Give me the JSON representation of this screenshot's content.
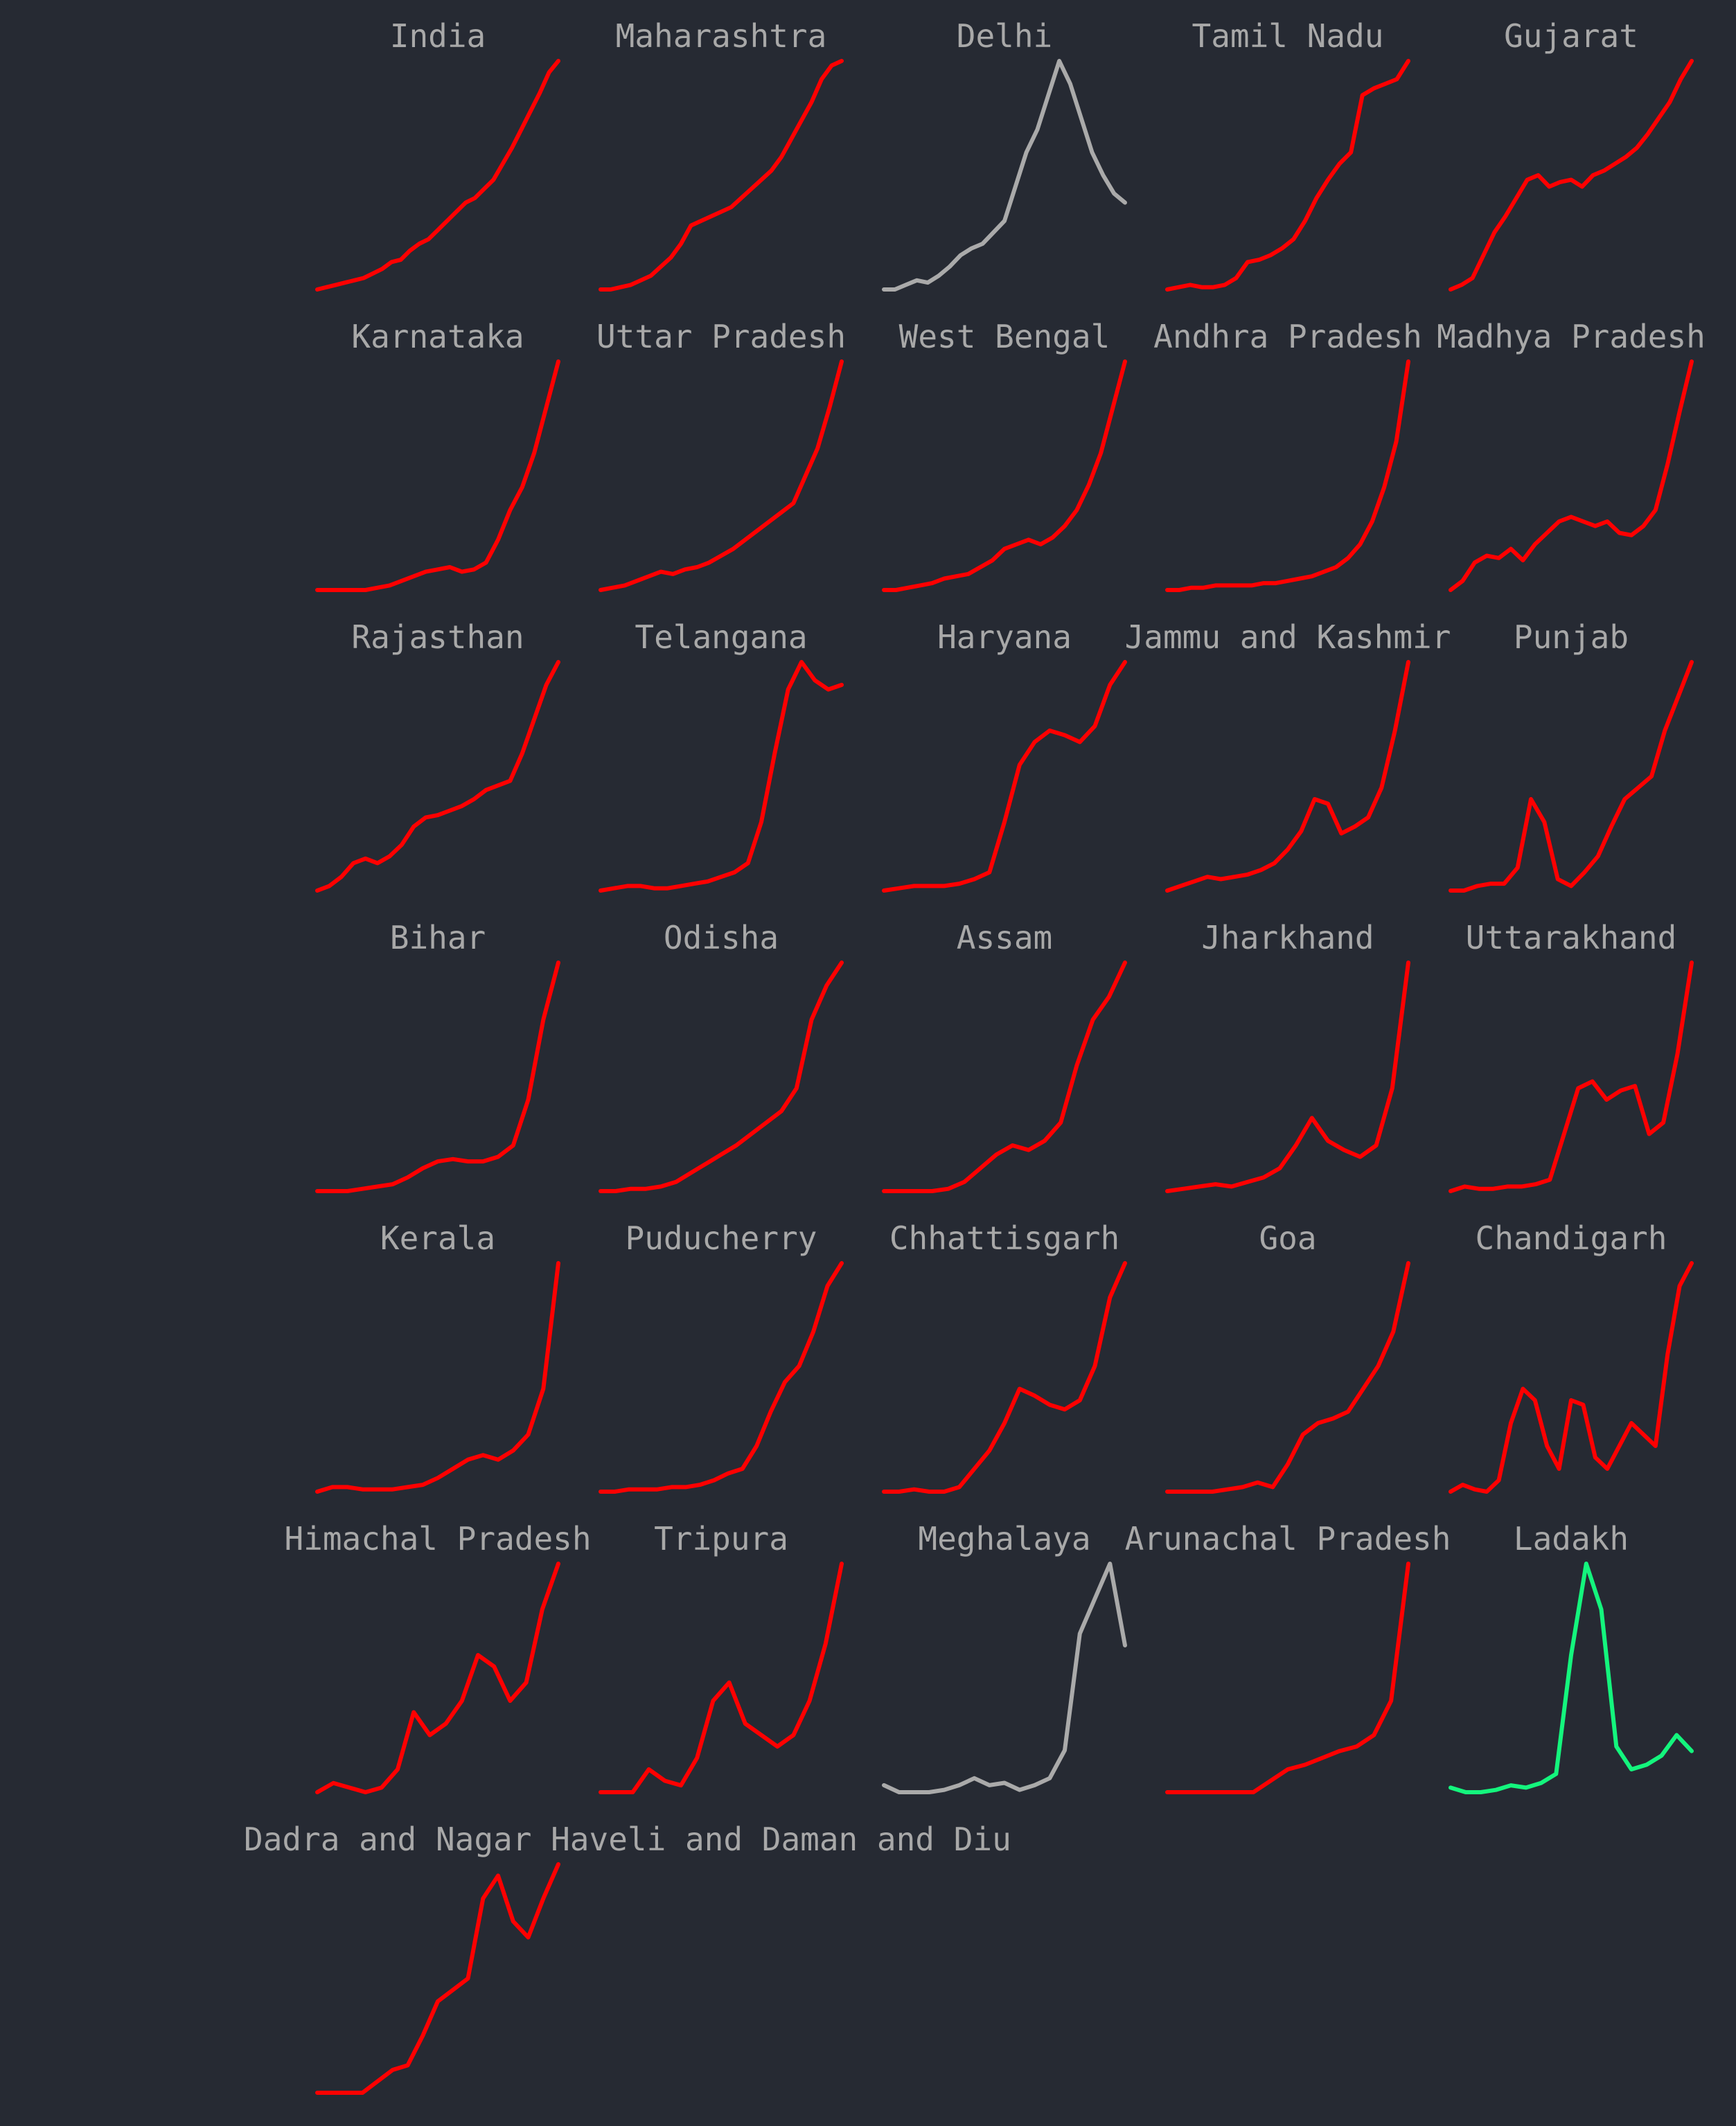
{
  "colors": {
    "background": "#262a33",
    "title": "#a8a8a8",
    "rising": "#ff0000",
    "peaked": "#aaaaaa",
    "declining": "#14f57d"
  },
  "chart_data": [
    {
      "type": "line",
      "title": "India",
      "color": "#ff0000",
      "values": [
        0,
        1,
        2,
        3,
        4,
        5,
        7,
        9,
        12,
        13,
        17,
        20,
        22,
        26,
        30,
        34,
        38,
        40,
        44,
        48,
        55,
        62,
        70,
        78,
        86,
        95,
        100
      ]
    },
    {
      "type": "line",
      "title": "Maharashtra",
      "color": "#ff0000",
      "values": [
        0,
        0,
        1,
        2,
        4,
        6,
        10,
        14,
        20,
        28,
        30,
        32,
        34,
        36,
        40,
        44,
        48,
        52,
        58,
        66,
        74,
        82,
        92,
        98,
        100
      ]
    },
    {
      "type": "line",
      "title": "Delhi",
      "color": "#aaaaaa",
      "values": [
        0,
        0,
        2,
        4,
        3,
        6,
        10,
        15,
        18,
        20,
        25,
        30,
        45,
        60,
        70,
        85,
        100,
        90,
        75,
        60,
        50,
        42,
        38
      ]
    },
    {
      "type": "line",
      "title": "Tamil Nadu",
      "color": "#ff0000",
      "values": [
        0,
        1,
        2,
        1,
        1,
        2,
        5,
        12,
        13,
        15,
        18,
        22,
        30,
        40,
        48,
        55,
        60,
        85,
        88,
        90,
        92,
        100
      ]
    },
    {
      "type": "line",
      "title": "Gujarat",
      "color": "#ff0000",
      "values": [
        0,
        2,
        5,
        15,
        25,
        32,
        40,
        48,
        50,
        45,
        47,
        48,
        45,
        50,
        52,
        55,
        58,
        62,
        68,
        75,
        82,
        92,
        100
      ]
    },
    {
      "type": "line",
      "title": "Karnataka",
      "color": "#ff0000",
      "values": [
        0,
        0,
        0,
        0,
        0,
        1,
        2,
        4,
        6,
        8,
        9,
        10,
        8,
        9,
        12,
        22,
        35,
        45,
        60,
        80,
        100
      ]
    },
    {
      "type": "line",
      "title": "Uttar Pradesh",
      "color": "#ff0000",
      "values": [
        0,
        1,
        2,
        4,
        6,
        8,
        7,
        9,
        10,
        12,
        15,
        18,
        22,
        26,
        30,
        34,
        38,
        50,
        62,
        80,
        100
      ]
    },
    {
      "type": "line",
      "title": "West Bengal",
      "color": "#ff0000",
      "values": [
        0,
        0,
        1,
        2,
        3,
        5,
        6,
        7,
        10,
        13,
        18,
        20,
        22,
        20,
        23,
        28,
        35,
        46,
        60,
        80,
        100
      ]
    },
    {
      "type": "line",
      "title": "Andhra Pradesh",
      "color": "#ff0000",
      "values": [
        0,
        0,
        1,
        1,
        2,
        2,
        2,
        2,
        3,
        3,
        4,
        5,
        6,
        8,
        10,
        14,
        20,
        30,
        45,
        65,
        100
      ]
    },
    {
      "type": "line",
      "title": "Madhya Pradesh",
      "color": "#ff0000",
      "values": [
        0,
        4,
        12,
        15,
        14,
        18,
        13,
        20,
        25,
        30,
        32,
        30,
        28,
        30,
        25,
        24,
        28,
        35,
        55,
        78,
        100
      ]
    },
    {
      "type": "line",
      "title": "Rajasthan",
      "color": "#ff0000",
      "values": [
        0,
        2,
        6,
        12,
        14,
        12,
        15,
        20,
        28,
        32,
        33,
        35,
        37,
        40,
        44,
        46,
        48,
        60,
        75,
        90,
        100
      ]
    },
    {
      "type": "line",
      "title": "Telangana",
      "color": "#ff0000",
      "values": [
        0,
        1,
        2,
        2,
        1,
        1,
        2,
        3,
        4,
        6,
        8,
        12,
        30,
        60,
        88,
        100,
        92,
        88,
        90
      ]
    },
    {
      "type": "line",
      "title": "Haryana",
      "color": "#ff0000",
      "values": [
        0,
        1,
        2,
        2,
        2,
        3,
        5,
        8,
        30,
        55,
        65,
        70,
        68,
        65,
        72,
        90,
        100
      ]
    },
    {
      "type": "line",
      "title": "Jammu and Kashmir",
      "color": "#ff0000",
      "values": [
        0,
        2,
        4,
        6,
        5,
        6,
        7,
        9,
        12,
        18,
        26,
        40,
        38,
        25,
        28,
        32,
        45,
        70,
        100
      ]
    },
    {
      "type": "line",
      "title": "Punjab",
      "color": "#ff0000",
      "values": [
        0,
        0,
        2,
        3,
        3,
        10,
        40,
        30,
        5,
        2,
        8,
        15,
        28,
        40,
        45,
        50,
        70,
        85,
        100
      ]
    },
    {
      "type": "line",
      "title": "Bihar",
      "color": "#ff0000",
      "values": [
        0,
        0,
        0,
        1,
        2,
        3,
        6,
        10,
        13,
        14,
        13,
        13,
        15,
        20,
        40,
        75,
        100
      ]
    },
    {
      "type": "line",
      "title": "Odisha",
      "color": "#ff0000",
      "values": [
        0,
        0,
        1,
        1,
        2,
        4,
        8,
        12,
        16,
        20,
        25,
        30,
        35,
        45,
        75,
        90,
        100
      ]
    },
    {
      "type": "line",
      "title": "Assam",
      "color": "#ff0000",
      "values": [
        0,
        0,
        0,
        0,
        1,
        4,
        10,
        16,
        20,
        18,
        22,
        30,
        55,
        75,
        85,
        100
      ]
    },
    {
      "type": "line",
      "title": "Jharkhand",
      "color": "#ff0000",
      "values": [
        0,
        1,
        2,
        3,
        2,
        4,
        6,
        10,
        20,
        32,
        22,
        18,
        15,
        20,
        45,
        100
      ]
    },
    {
      "type": "line",
      "title": "Uttarakhand",
      "color": "#ff0000",
      "values": [
        0,
        2,
        1,
        1,
        2,
        2,
        3,
        5,
        25,
        45,
        48,
        40,
        44,
        46,
        25,
        30,
        60,
        100
      ]
    },
    {
      "type": "line",
      "title": "Kerala",
      "color": "#ff0000",
      "values": [
        0,
        2,
        2,
        1,
        1,
        1,
        2,
        3,
        6,
        10,
        14,
        16,
        14,
        18,
        25,
        45,
        100
      ]
    },
    {
      "type": "line",
      "title": "Puducherry",
      "color": "#ff0000",
      "values": [
        0,
        0,
        1,
        1,
        1,
        2,
        2,
        3,
        5,
        8,
        10,
        20,
        35,
        48,
        55,
        70,
        90,
        100
      ]
    },
    {
      "type": "line",
      "title": "Chhattisgarh",
      "color": "#ff0000",
      "values": [
        0,
        0,
        1,
        0,
        0,
        2,
        10,
        18,
        30,
        45,
        42,
        38,
        36,
        40,
        55,
        85,
        100
      ]
    },
    {
      "type": "line",
      "title": "Goa",
      "color": "#ff0000",
      "values": [
        0,
        0,
        0,
        0,
        1,
        2,
        4,
        2,
        12,
        25,
        30,
        32,
        35,
        45,
        55,
        70,
        100
      ]
    },
    {
      "type": "line",
      "title": "Chandigarh",
      "color": "#ff0000",
      "values": [
        0,
        3,
        1,
        0,
        5,
        30,
        45,
        40,
        20,
        10,
        40,
        38,
        15,
        10,
        20,
        30,
        25,
        20,
        60,
        90,
        100
      ]
    },
    {
      "type": "line",
      "title": "Himachal Pradesh",
      "color": "#ff0000",
      "values": [
        0,
        4,
        2,
        0,
        2,
        10,
        35,
        25,
        30,
        40,
        60,
        55,
        40,
        48,
        80,
        100
      ]
    },
    {
      "type": "line",
      "title": "Tripura",
      "color": "#ff0000",
      "values": [
        0,
        0,
        0,
        10,
        5,
        3,
        15,
        40,
        48,
        30,
        25,
        20,
        25,
        40,
        65,
        100
      ]
    },
    {
      "type": "line",
      "title": "Meghalaya",
      "color": "#aaaaaa",
      "values": [
        5,
        2,
        2,
        2,
        3,
        5,
        8,
        5,
        6,
        3,
        5,
        8,
        20,
        70,
        85,
        100,
        65
      ]
    },
    {
      "type": "line",
      "title": "Arunachal Pradesh",
      "color": "#ff0000",
      "values": [
        0,
        0,
        0,
        0,
        0,
        0,
        5,
        10,
        12,
        15,
        18,
        20,
        25,
        40,
        100
      ]
    },
    {
      "type": "line",
      "title": "Ladakh",
      "color": "#14f57d",
      "values": [
        2,
        0,
        0,
        1,
        3,
        2,
        4,
        8,
        60,
        100,
        80,
        20,
        10,
        12,
        16,
        25,
        18
      ]
    },
    {
      "type": "line",
      "title": "Dadra and Nagar Haveli and Daman and Diu",
      "color": "#ff0000",
      "values": [
        0,
        0,
        0,
        0,
        5,
        10,
        12,
        25,
        40,
        45,
        50,
        85,
        95,
        75,
        68,
        85,
        100
      ]
    }
  ]
}
